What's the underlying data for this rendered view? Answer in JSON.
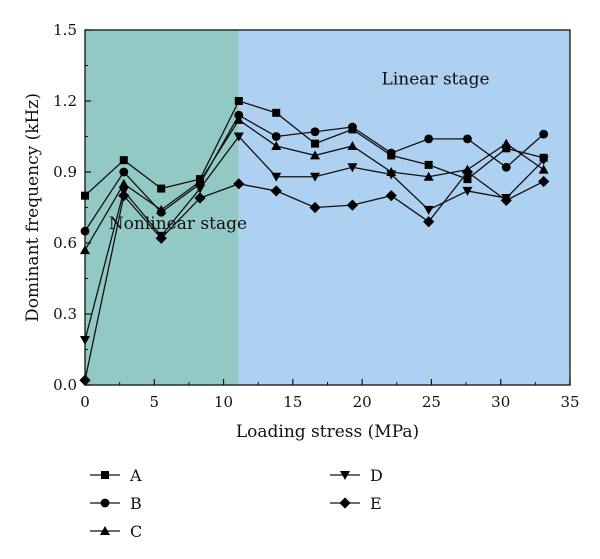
{
  "chart_data": {
    "type": "line",
    "title": "",
    "xlabel": "Loading stress (MPa)",
    "ylabel": "Dominant frequency (kHz)",
    "xlim": [
      0,
      35
    ],
    "ylim": [
      0,
      1.5
    ],
    "xticks": [
      "0",
      "5",
      "10",
      "15",
      "20",
      "25",
      "30",
      "35"
    ],
    "yticks": [
      "0.0",
      "0.3",
      "0.6",
      "0.9",
      "1.2",
      "1.5"
    ],
    "grid": false,
    "legend_position": "bottom",
    "regions": [
      {
        "label": "Nonlinear stage",
        "x_from": 0,
        "x_to": 11.1,
        "color": "#93c9c4"
      },
      {
        "label": "Linear stage",
        "x_from": 11.1,
        "x_to": 35,
        "color": "#aed0f1"
      }
    ],
    "series": [
      {
        "name": "A",
        "marker": "square",
        "x": [
          0,
          2.8,
          5.5,
          8.3,
          11.1,
          13.8,
          16.6,
          19.3,
          22.1,
          24.8,
          27.6,
          30.4,
          33.1
        ],
        "y": [
          0.8,
          0.95,
          0.83,
          0.87,
          1.2,
          1.15,
          1.02,
          1.08,
          0.97,
          0.93,
          0.87,
          1.0,
          0.96
        ]
      },
      {
        "name": "B",
        "marker": "circle",
        "x": [
          0,
          2.8,
          5.5,
          8.3,
          11.1,
          13.8,
          16.6,
          19.3,
          22.1,
          24.8,
          27.6,
          30.4,
          33.1
        ],
        "y": [
          0.65,
          0.9,
          0.73,
          0.85,
          1.14,
          1.05,
          1.07,
          1.09,
          0.98,
          1.04,
          1.04,
          0.92,
          1.06
        ]
      },
      {
        "name": "C",
        "marker": "triangle-up",
        "x": [
          0,
          2.8,
          5.5,
          8.3,
          11.1,
          13.8,
          16.6,
          19.3,
          22.1,
          24.8,
          27.6,
          30.4,
          33.1
        ],
        "y": [
          0.57,
          0.85,
          0.74,
          0.86,
          1.12,
          1.01,
          0.97,
          1.01,
          0.9,
          0.88,
          0.91,
          1.02,
          0.91
        ]
      },
      {
        "name": "D",
        "marker": "triangle-down",
        "x": [
          0,
          2.8,
          5.5,
          8.3,
          11.1,
          13.8,
          16.6,
          19.3,
          22.1,
          24.8,
          27.6,
          30.4,
          33.1
        ],
        "y": [
          0.19,
          0.82,
          0.63,
          0.83,
          1.05,
          0.88,
          0.88,
          0.92,
          0.89,
          0.74,
          0.82,
          0.79,
          0.95
        ]
      },
      {
        "name": "E",
        "marker": "diamond",
        "x": [
          0,
          2.8,
          5.5,
          8.3,
          11.1,
          13.8,
          16.6,
          19.3,
          22.1,
          24.8,
          27.6,
          30.4,
          33.1
        ],
        "y": [
          0.02,
          0.8,
          0.62,
          0.79,
          0.85,
          0.82,
          0.75,
          0.76,
          0.8,
          0.69,
          0.9,
          0.78,
          0.86
        ]
      }
    ]
  }
}
